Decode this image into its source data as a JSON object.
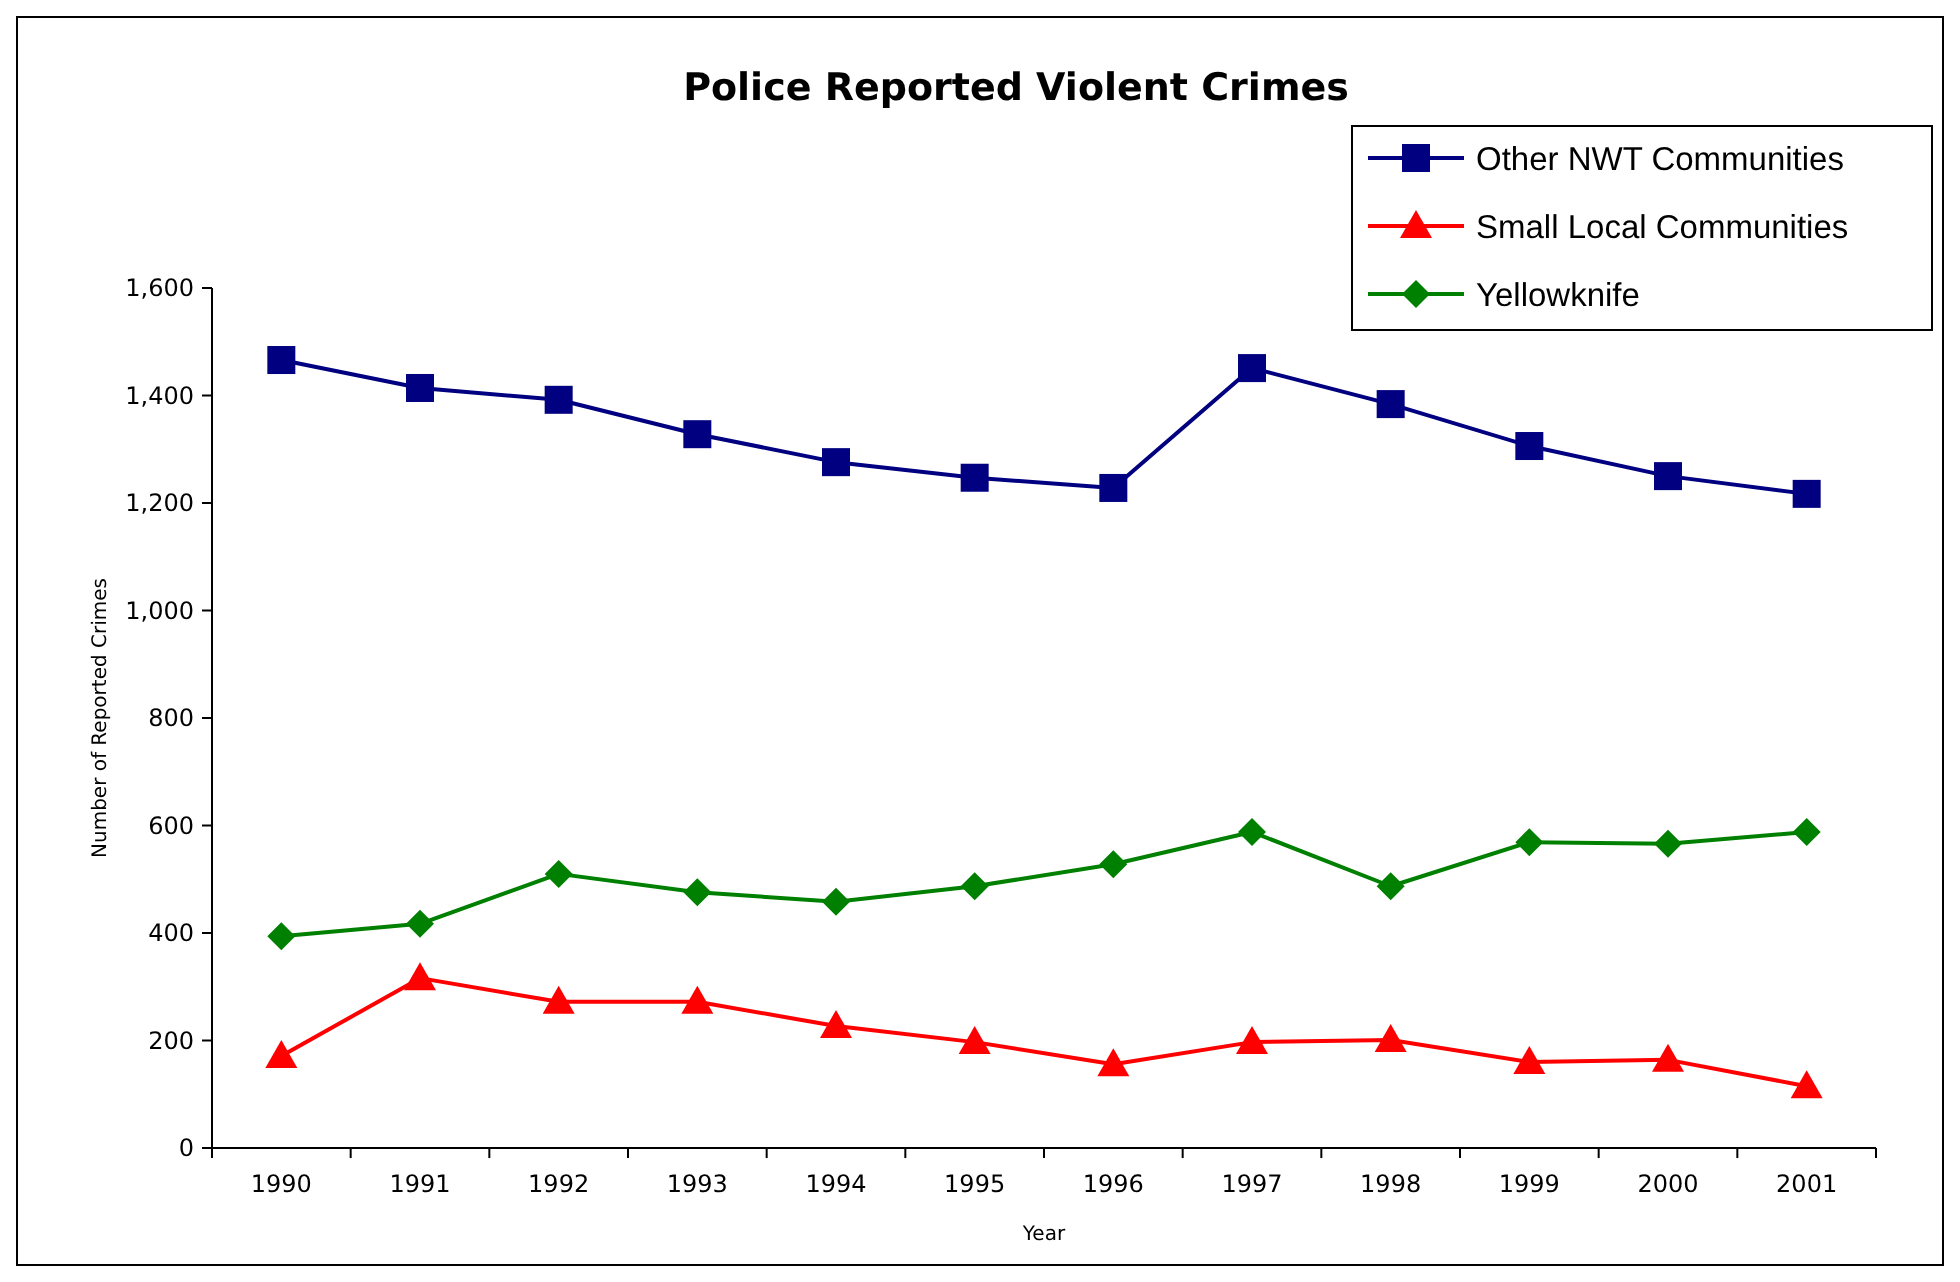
{
  "chart_data": {
    "type": "line",
    "title": "Police Reported Violent Crimes",
    "xlabel": "Year",
    "ylabel": "Number of Reported Crimes",
    "categories": [
      "1990",
      "1991",
      "1992",
      "1993",
      "1994",
      "1995",
      "1996",
      "1997",
      "1998",
      "1999",
      "2000",
      "2001"
    ],
    "series": [
      {
        "name": "Other NWT Communities",
        "color": "#000080",
        "marker": "square",
        "values": [
          1466,
          1414,
          1392,
          1328,
          1276,
          1247,
          1228,
          1451,
          1384,
          1306,
          1250,
          1217
        ]
      },
      {
        "name": "Small Local Communities",
        "color": "#ff0000",
        "marker": "triangle",
        "values": [
          171,
          316,
          272,
          272,
          227,
          197,
          156,
          197,
          201,
          160,
          164,
          115
        ]
      },
      {
        "name": "Yellowknife",
        "color": "#008000",
        "marker": "diamond",
        "values": [
          394,
          417,
          510,
          476,
          458,
          487,
          528,
          588,
          487,
          569,
          566,
          588
        ]
      }
    ],
    "ylim": [
      0,
      1600
    ],
    "yticks": [
      {
        "value": 0,
        "label": "0"
      },
      {
        "value": 200,
        "label": "200"
      },
      {
        "value": 400,
        "label": "400"
      },
      {
        "value": 600,
        "label": "600"
      },
      {
        "value": 800,
        "label": "800"
      },
      {
        "value": 1000,
        "label": "1,000"
      },
      {
        "value": 1200,
        "label": "1,200"
      },
      {
        "value": 1400,
        "label": "1,400"
      },
      {
        "value": 1600,
        "label": "1,600"
      }
    ],
    "grid": false,
    "legend": "top right",
    "line_style": "solid"
  }
}
